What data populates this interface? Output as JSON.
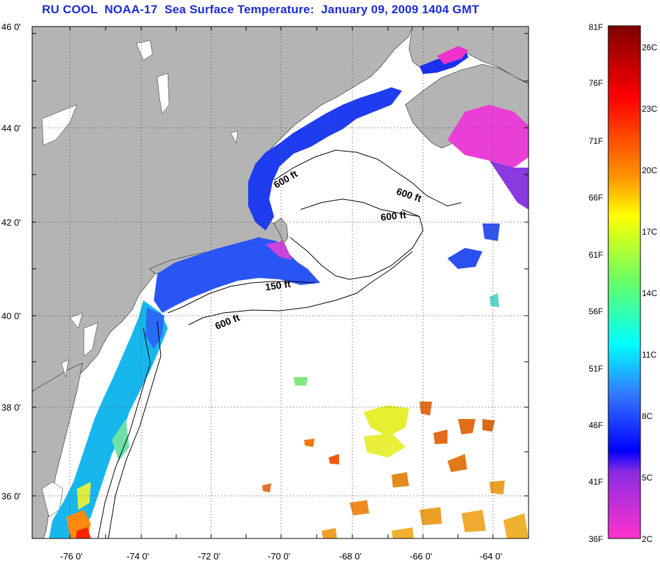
{
  "title": "RU COOL  NOAA-17  Sea Surface Temperature:  January 09, 2009 1404 GMT",
  "map": {
    "lat_labels": [
      "46 0'",
      "44 0'",
      "42 0'",
      "40 0'",
      "38 0'",
      "36 0'"
    ],
    "lon_labels": [
      "-76 0'",
      "-74 0'",
      "-72 0'",
      "-70 0'",
      "-68 0'",
      "-66 0'",
      "-64 0'"
    ],
    "lat_range": [
      35,
      46
    ],
    "lon_range": [
      -77,
      -63
    ],
    "gridlines": "dotted",
    "land_color": "#b4b4b4",
    "contours": [
      {
        "label": "600 ft"
      },
      {
        "label": "600 ft"
      },
      {
        "label": "600 ft"
      },
      {
        "label": "150 ft"
      },
      {
        "label": "600 ft"
      }
    ]
  },
  "colorbar": {
    "fahrenheit_labels": [
      "81F",
      "76F",
      "71F",
      "66F",
      "61F",
      "56F",
      "51F",
      "46F",
      "41F",
      "36F"
    ],
    "celsius_labels": [
      "26C",
      "23C",
      "20C",
      "17C",
      "14C",
      "11C",
      "8C",
      "5C",
      "2C"
    ],
    "colors": {
      "top": "#7f0000",
      "red": "#ff0000",
      "orange": "#ff9900",
      "yellow": "#ffff00",
      "green": "#66ff66",
      "cyan": "#00ffff",
      "blue": "#0000ff",
      "purple": "#8a2be2",
      "magenta": "#ff33cc"
    }
  }
}
